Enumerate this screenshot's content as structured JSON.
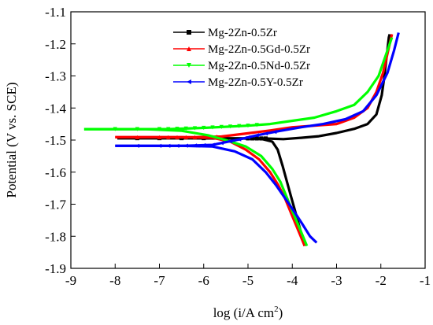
{
  "chart_data": {
    "type": "line",
    "title": "",
    "xlabel": "log (i/A cm",
    "xlabel_superscript": "2",
    "xlabel_close": ")",
    "ylabel": "Potential (V vs. SCE)",
    "xlim": [
      -9,
      -1
    ],
    "ylim": [
      -1.9,
      -1.1
    ],
    "x_ticks": [
      -9,
      -8,
      -7,
      -6,
      -5,
      -4,
      -3,
      -2,
      -1
    ],
    "y_ticks": [
      -1.1,
      -1.2,
      -1.3,
      -1.4,
      -1.5,
      -1.6,
      -1.7,
      -1.8,
      -1.9
    ],
    "grid": false,
    "legend_position": "top-right",
    "series": [
      {
        "name": "Mg-2Zn-0.5Zr",
        "color": "#000000",
        "marker": "square",
        "cathodic": [
          [
            -3.72,
            -1.83
          ],
          [
            -3.82,
            -1.78
          ],
          [
            -3.92,
            -1.73
          ],
          [
            -4.02,
            -1.68
          ],
          [
            -4.12,
            -1.63
          ],
          [
            -4.22,
            -1.58
          ],
          [
            -4.33,
            -1.53
          ],
          [
            -4.45,
            -1.505
          ],
          [
            -4.7,
            -1.496
          ],
          [
            -5.1,
            -1.495
          ],
          [
            -5.6,
            -1.495
          ],
          [
            -6.3,
            -1.494
          ],
          [
            -7.2,
            -1.494
          ],
          [
            -7.95,
            -1.494
          ]
        ],
        "anodic": [
          [
            -7.95,
            -1.494
          ],
          [
            -6.0,
            -1.494
          ],
          [
            -4.6,
            -1.495
          ],
          [
            -4.2,
            -1.497
          ],
          [
            -3.8,
            -1.493
          ],
          [
            -3.4,
            -1.488
          ],
          [
            -3.0,
            -1.478
          ],
          [
            -2.6,
            -1.465
          ],
          [
            -2.3,
            -1.45
          ],
          [
            -2.1,
            -1.42
          ],
          [
            -1.98,
            -1.36
          ],
          [
            -1.92,
            -1.3
          ],
          [
            -1.87,
            -1.24
          ],
          [
            -1.82,
            -1.18
          ],
          [
            -1.8,
            -1.17
          ]
        ],
        "marker_x": [
          -7.5,
          -7.0,
          -6.5,
          -6.0,
          -5.5,
          -5.0,
          -4.9,
          -4.8,
          -4.7,
          -4.6
        ]
      },
      {
        "name": "Mg-2Zn-0.5Gd-0.5Zr",
        "color": "#ff0000",
        "marker": "triangle-up",
        "cathodic": [
          [
            -3.72,
            -1.83
          ],
          [
            -3.87,
            -1.78
          ],
          [
            -4.02,
            -1.73
          ],
          [
            -4.17,
            -1.68
          ],
          [
            -4.32,
            -1.64
          ],
          [
            -4.5,
            -1.6
          ],
          [
            -4.75,
            -1.56
          ],
          [
            -5.05,
            -1.53
          ],
          [
            -5.4,
            -1.505
          ],
          [
            -5.8,
            -1.493
          ],
          [
            -6.5,
            -1.491
          ],
          [
            -7.2,
            -1.491
          ],
          [
            -8.0,
            -1.491
          ]
        ],
        "anodic": [
          [
            -8.0,
            -1.491
          ],
          [
            -6.2,
            -1.491
          ],
          [
            -5.6,
            -1.489
          ],
          [
            -5.0,
            -1.479
          ],
          [
            -4.5,
            -1.47
          ],
          [
            -4.0,
            -1.46
          ],
          [
            -3.5,
            -1.455
          ],
          [
            -3.0,
            -1.45
          ],
          [
            -2.6,
            -1.43
          ],
          [
            -2.3,
            -1.4
          ],
          [
            -2.1,
            -1.35
          ],
          [
            -1.95,
            -1.29
          ],
          [
            -1.85,
            -1.23
          ],
          [
            -1.75,
            -1.17
          ]
        ],
        "marker_x": [
          -7.5,
          -7.0,
          -6.8,
          -6.6,
          -6.4,
          -6.2,
          -6.0,
          -5.8,
          -5.7
        ]
      },
      {
        "name": "Mg-2Zn-0.5Nd-0.5Zr",
        "color": "#00ff00",
        "marker": "triangle-down",
        "cathodic": [
          [
            -3.67,
            -1.83
          ],
          [
            -3.82,
            -1.78
          ],
          [
            -3.97,
            -1.73
          ],
          [
            -4.12,
            -1.68
          ],
          [
            -4.27,
            -1.63
          ],
          [
            -4.45,
            -1.59
          ],
          [
            -4.7,
            -1.55
          ],
          [
            -5.05,
            -1.52
          ],
          [
            -5.5,
            -1.5
          ],
          [
            -5.9,
            -1.485
          ],
          [
            -6.5,
            -1.471
          ],
          [
            -7.3,
            -1.466
          ],
          [
            -8.7,
            -1.466
          ]
        ],
        "anodic": [
          [
            -8.7,
            -1.466
          ],
          [
            -6.8,
            -1.466
          ],
          [
            -6.0,
            -1.462
          ],
          [
            -5.0,
            -1.455
          ],
          [
            -4.5,
            -1.45
          ],
          [
            -4.0,
            -1.44
          ],
          [
            -3.5,
            -1.43
          ],
          [
            -3.0,
            -1.41
          ],
          [
            -2.6,
            -1.39
          ],
          [
            -2.3,
            -1.35
          ],
          [
            -2.05,
            -1.3
          ],
          [
            -1.9,
            -1.24
          ],
          [
            -1.75,
            -1.18
          ]
        ],
        "marker_x": [
          -8.0,
          -7.5,
          -7.0,
          -6.8,
          -6.6,
          -6.4,
          -6.2,
          -6.0,
          -5.8,
          -5.6,
          -5.4,
          -5.2,
          -5.0,
          -4.8
        ]
      },
      {
        "name": "Mg-2Zn-0.5Y-0.5Zr",
        "color": "#0000ff",
        "marker": "triangle-left",
        "cathodic": [
          [
            -3.45,
            -1.82
          ],
          [
            -3.6,
            -1.8
          ],
          [
            -3.78,
            -1.76
          ],
          [
            -3.97,
            -1.72
          ],
          [
            -4.17,
            -1.68
          ],
          [
            -4.37,
            -1.64
          ],
          [
            -4.6,
            -1.6
          ],
          [
            -4.9,
            -1.56
          ],
          [
            -5.3,
            -1.535
          ],
          [
            -5.8,
            -1.52
          ],
          [
            -6.5,
            -1.518
          ],
          [
            -7.3,
            -1.518
          ],
          [
            -8.0,
            -1.518
          ]
        ],
        "anodic": [
          [
            -8.0,
            -1.518
          ],
          [
            -6.5,
            -1.518
          ],
          [
            -5.8,
            -1.515
          ],
          [
            -5.2,
            -1.498
          ],
          [
            -4.8,
            -1.485
          ],
          [
            -4.3,
            -1.472
          ],
          [
            -3.8,
            -1.46
          ],
          [
            -3.3,
            -1.45
          ],
          [
            -2.8,
            -1.435
          ],
          [
            -2.4,
            -1.41
          ],
          [
            -2.1,
            -1.36
          ],
          [
            -1.85,
            -1.29
          ],
          [
            -1.7,
            -1.22
          ],
          [
            -1.6,
            -1.165
          ]
        ],
        "marker_x": [
          -7.5,
          -7.0,
          -6.8,
          -6.6,
          -6.4,
          -6.2,
          -6.0,
          -5.8,
          -5.6,
          -5.4,
          -5.2,
          -5.0,
          -4.8,
          -4.6,
          -4.4
        ]
      }
    ]
  }
}
